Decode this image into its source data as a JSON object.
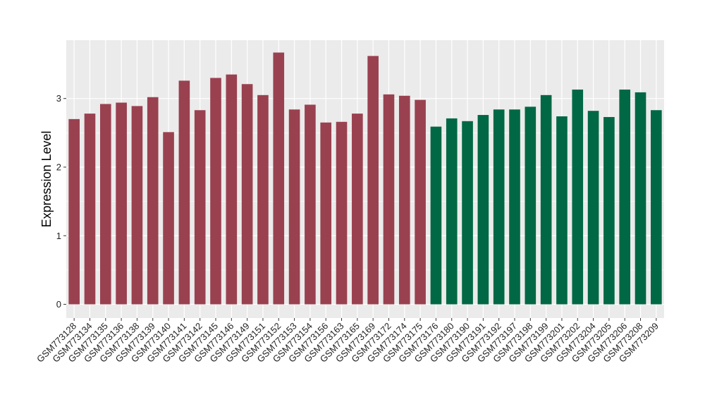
{
  "chart_data": {
    "type": "bar",
    "title": "",
    "xlabel": "",
    "ylabel": "Expression Level",
    "ylim": [
      -0.2,
      3.85
    ],
    "yticks": [
      0,
      1,
      2,
      3
    ],
    "grid": true,
    "legend": "none",
    "categories": [
      "GSM773128",
      "GSM773134",
      "GSM773135",
      "GSM773136",
      "GSM773138",
      "GSM773139",
      "GSM773140",
      "GSM773141",
      "GSM773142",
      "GSM773145",
      "GSM773146",
      "GSM773149",
      "GSM773151",
      "GSM773152",
      "GSM773153",
      "GSM773154",
      "GSM773156",
      "GSM773163",
      "GSM773165",
      "GSM773169",
      "GSM773172",
      "GSM773174",
      "GSM773175",
      "GSM773176",
      "GSM773180",
      "GSM773190",
      "GSM773191",
      "GSM773192",
      "GSM773197",
      "GSM773198",
      "GSM773199",
      "GSM773201",
      "GSM773202",
      "GSM773204",
      "GSM773205",
      "GSM773206",
      "GSM773208",
      "GSM773209"
    ],
    "values": [
      2.7,
      2.78,
      2.92,
      2.94,
      2.89,
      3.02,
      2.51,
      3.26,
      2.83,
      3.3,
      3.35,
      3.21,
      3.05,
      3.67,
      2.84,
      2.91,
      2.65,
      2.66,
      2.78,
      3.62,
      3.06,
      3.04,
      2.98,
      2.59,
      2.71,
      2.67,
      2.76,
      2.84,
      2.84,
      2.88,
      3.05,
      2.74,
      3.13,
      2.82,
      2.73,
      3.13,
      3.09,
      2.83
    ],
    "group_sizes": [
      23,
      15
    ],
    "colors": [
      "#9a4150",
      "#006844"
    ]
  }
}
